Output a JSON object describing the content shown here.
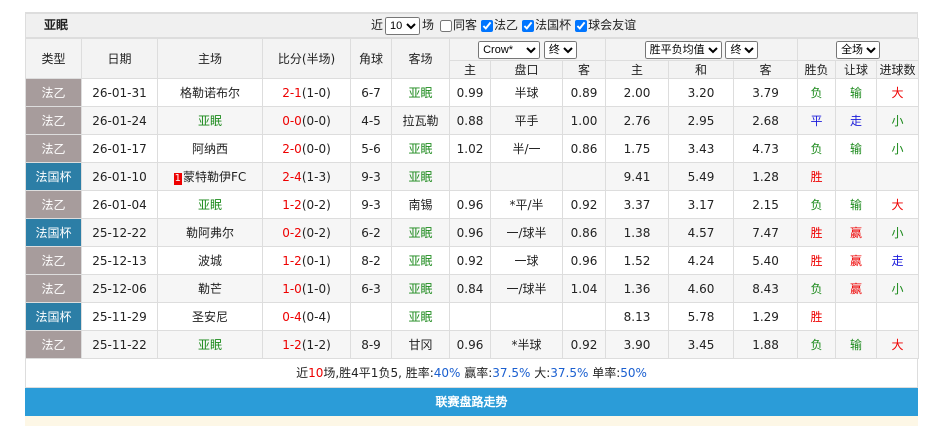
{
  "header": {
    "team": "亚眠",
    "recent_prefix": "近",
    "recent_count": "10",
    "recent_suffix": "场",
    "filters": [
      "同客",
      "法乙",
      "法国杯",
      "球会友谊"
    ],
    "filter_checked": [
      false,
      true,
      true,
      true
    ]
  },
  "table": {
    "columns": [
      "类型",
      "日期",
      "主场",
      "比分(半场)",
      "角球",
      "客场"
    ],
    "odds_selects": [
      "Crow*",
      "终"
    ],
    "odds_columns": [
      "主",
      "盘口",
      "客"
    ],
    "avg_selects": [
      "胜平负均值",
      "终"
    ],
    "avg_columns": [
      "主",
      "和",
      "客"
    ],
    "result_select": "全场",
    "result_columns": [
      "胜负",
      "让球",
      "进球数"
    ],
    "rows": [
      {
        "cells": [
          "法乙",
          "26-01-31",
          "格勒诺布尔",
          "2-1",
          "(1-0)",
          "6-7",
          "亚眠",
          "0.99",
          "半球",
          "0.89",
          "2.00",
          "3.20",
          "3.79",
          "负",
          "输",
          "大"
        ]
      },
      {
        "cells": [
          "法乙",
          "26-01-24",
          "亚眠",
          "0-0",
          "(0-0)",
          "4-5",
          "拉瓦勒",
          "0.88",
          "平手",
          "1.00",
          "2.76",
          "2.95",
          "2.68",
          "平",
          "走",
          "小"
        ]
      },
      {
        "cells": [
          "法乙",
          "26-01-17",
          "阿纳西",
          "2-0",
          "(0-0)",
          "5-6",
          "亚眠",
          "1.02",
          "半/一",
          "0.86",
          "1.75",
          "3.43",
          "4.73",
          "负",
          "输",
          "小"
        ]
      },
      {
        "cells": [
          "法国杯",
          "26-01-10",
          "蒙特勒伊FC",
          "2-4",
          "(1-3)",
          "9-3",
          "亚眠",
          null,
          null,
          null,
          "9.41",
          "5.49",
          "1.28",
          "胜",
          null,
          null
        ],
        "home_red_card": "1"
      },
      {
        "cells": [
          "法乙",
          "26-01-04",
          "亚眠",
          "1-2",
          "(0-2)",
          "9-3",
          "南锡",
          "0.96",
          "*平/半",
          "0.92",
          "3.37",
          "3.17",
          "2.15",
          "负",
          "输",
          "大"
        ]
      },
      {
        "cells": [
          "法国杯",
          "25-12-22",
          "勒阿弗尔",
          "0-2",
          "(0-2)",
          "6-2",
          "亚眠",
          "0.96",
          "一/球半",
          "0.86",
          "1.38",
          "4.57",
          "7.47",
          "胜",
          "赢",
          "小"
        ]
      },
      {
        "cells": [
          "法乙",
          "25-12-13",
          "波城",
          "1-2",
          "(0-1)",
          "8-2",
          "亚眠",
          "0.92",
          "一球",
          "0.96",
          "1.52",
          "4.24",
          "5.40",
          "胜",
          "赢",
          "走"
        ]
      },
      {
        "cells": [
          "法乙",
          "25-12-06",
          "勒芒",
          "1-0",
          "(1-0)",
          "6-3",
          "亚眠",
          "0.84",
          "一/球半",
          "1.04",
          "1.36",
          "4.60",
          "8.43",
          "负",
          "赢",
          "小"
        ]
      },
      {
        "cells": [
          "法国杯",
          "25-11-29",
          "圣安尼",
          "0-4",
          "(0-4)",
          null,
          "亚眠",
          null,
          null,
          null,
          "8.13",
          "5.78",
          "1.29",
          "胜",
          null,
          null
        ]
      },
      {
        "cells": [
          "法乙",
          "25-11-22",
          "亚眠",
          "1-2",
          "(1-2)",
          "8-9",
          "甘冈",
          "0.96",
          "*半球",
          "0.92",
          "3.90",
          "3.45",
          "1.88",
          "负",
          "输",
          "大"
        ]
      }
    ]
  },
  "summary": [
    "近",
    "10",
    "场,胜4平1负5, 胜率:",
    "40%",
    " 赢率:",
    "37.5%",
    " 大:",
    "37.5%",
    " 单率:",
    "50%"
  ],
  "footer_bar": "联赛盘路走势"
}
